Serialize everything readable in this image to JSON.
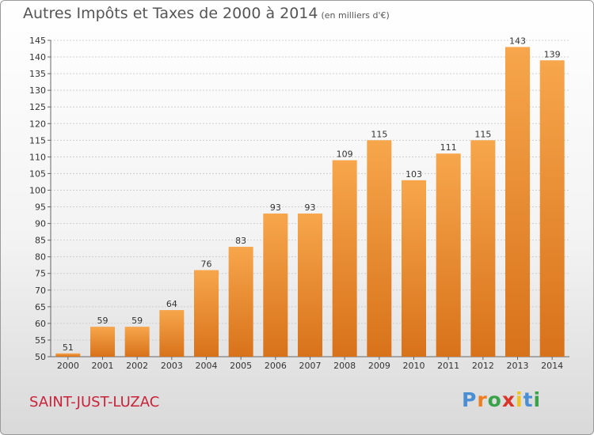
{
  "header": {
    "title": "Autres Impôts et Taxes de 2000 à 2014",
    "unit": "(en milliers d'€)"
  },
  "footer": {
    "city": "SAINT-JUST-LUZAC",
    "brand_letters": [
      "P",
      "r",
      "o",
      "x",
      "i",
      "t",
      "i"
    ],
    "brand_colors": [
      "#4a8fd4",
      "#f07d1e",
      "#3aa34a",
      "#d8362a",
      "#f2c21b",
      "#4a8fd4",
      "#3aa34a"
    ]
  },
  "colors": {
    "bar_light": "#f7a64c",
    "bar_dark": "#d8721a",
    "grid": "#cfcfcf",
    "text": "#333333",
    "city": "#c8233a"
  },
  "chart_data": {
    "type": "bar",
    "categories": [
      "2000",
      "2001",
      "2002",
      "2003",
      "2004",
      "2005",
      "2006",
      "2007",
      "2008",
      "2009",
      "2010",
      "2011",
      "2012",
      "2013",
      "2014"
    ],
    "values": [
      51,
      59,
      59,
      64,
      76,
      83,
      93,
      93,
      109,
      115,
      103,
      111,
      115,
      143,
      139
    ],
    "ylim": [
      50,
      145
    ],
    "yticks": [
      50,
      55,
      60,
      65,
      70,
      75,
      80,
      85,
      90,
      95,
      100,
      105,
      110,
      115,
      120,
      125,
      130,
      135,
      140,
      145
    ],
    "grid": true,
    "legend": "none"
  }
}
